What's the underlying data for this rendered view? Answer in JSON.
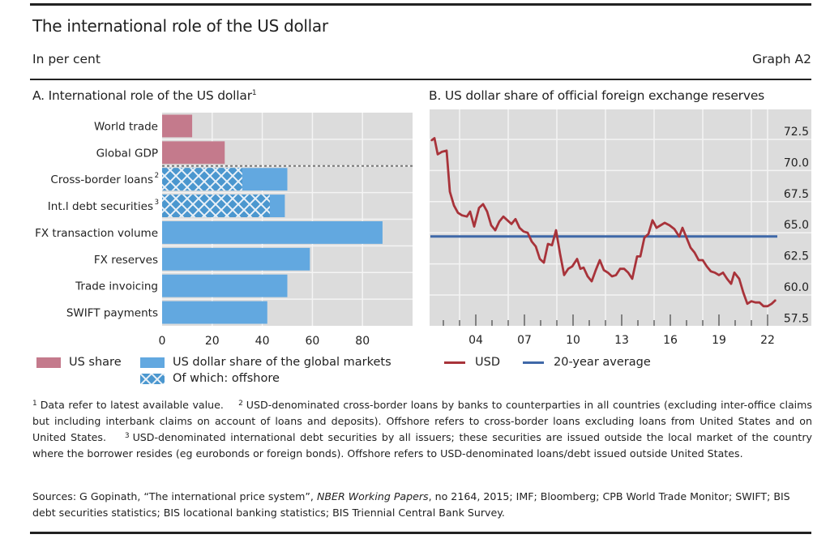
{
  "header": {
    "title": "The international role of the US dollar",
    "subtitle": "In per cent",
    "graph_id": "Graph A2"
  },
  "panel_a": {
    "title": "A. International role of the US dollar",
    "title_sup": "1",
    "legend": {
      "us_share": "US share",
      "global_markets": "US dollar share of the global markets",
      "offshore": "Of which: offshore"
    }
  },
  "panel_b": {
    "title": "B. US dollar share of official foreign exchange reserves",
    "legend": {
      "usd": "USD",
      "average": "20-year average"
    }
  },
  "colors": {
    "us_share": "#c47a8c",
    "global_markets": "#62a8e0",
    "offshore": "#4b97cf",
    "usd_line": "#a8333a",
    "average_line": "#3f68a8",
    "plot_bg": "#dcdcdc",
    "grid": "#f4f4f4"
  },
  "chart_data": [
    {
      "type": "bar",
      "orientation": "horizontal",
      "title": "A. International role of the US dollar",
      "xlabel": "",
      "ylabel": "",
      "xlim": [
        0,
        100
      ],
      "xticks": [
        0,
        20,
        40,
        60,
        80
      ],
      "grid": true,
      "categories": [
        {
          "label": "World trade",
          "sup": ""
        },
        {
          "label": "Global GDP",
          "sup": ""
        },
        {
          "label": "Cross-border loans",
          "sup": "2"
        },
        {
          "label": "Int.l debt securities",
          "sup": "3"
        },
        {
          "label": "FX transaction volume",
          "sup": ""
        },
        {
          "label": "FX reserves",
          "sup": ""
        },
        {
          "label": "Trade invoicing",
          "sup": ""
        },
        {
          "label": "SWIFT payments",
          "sup": ""
        }
      ],
      "series": [
        {
          "name": "US share",
          "values": [
            12,
            25,
            null,
            null,
            null,
            null,
            null,
            null
          ]
        },
        {
          "name": "US dollar share of the global markets",
          "values": [
            null,
            null,
            50,
            49,
            88,
            59,
            50,
            42
          ]
        },
        {
          "name": "Of which: offshore",
          "values": [
            null,
            null,
            32,
            43,
            null,
            null,
            null,
            null
          ]
        }
      ],
      "separator_after_index": 1,
      "legend_position": "bottom"
    },
    {
      "type": "line",
      "title": "B. US dollar share of official foreign exchange reserves",
      "xlabel": "",
      "ylabel": "",
      "xlim": [
        2001.2,
        2023.2
      ],
      "ylim": [
        57.5,
        73.7
      ],
      "yticks": [
        57.5,
        60.0,
        62.5,
        65.0,
        67.5,
        70.0,
        72.5
      ],
      "ytick_labels": [
        "57.5",
        "60.0",
        "62.5",
        "65.0",
        "67.5",
        "70.0",
        "72.5"
      ],
      "xticks": [
        2004,
        2007,
        2010,
        2013,
        2016,
        2019,
        2022
      ],
      "xtick_labels": [
        "04",
        "07",
        "10",
        "13",
        "16",
        "19",
        "22"
      ],
      "y_axis_side": "right",
      "grid": true,
      "legend_position": "bottom",
      "series": [
        {
          "name": "USD",
          "x": [
            2001.25,
            2001.45,
            2001.65,
            2001.9,
            2002.2,
            2002.4,
            2002.65,
            2002.9,
            2003.15,
            2003.45,
            2003.65,
            2003.9,
            2004.2,
            2004.45,
            2004.7,
            2004.95,
            2005.2,
            2005.45,
            2005.7,
            2005.95,
            2006.2,
            2006.45,
            2006.7,
            2006.95,
            2007.2,
            2007.45,
            2007.7,
            2007.95,
            2008.2,
            2008.45,
            2008.7,
            2008.95,
            2009.2,
            2009.45,
            2009.7,
            2009.95,
            2010.25,
            2010.45,
            2010.65,
            2010.9,
            2011.15,
            2011.4,
            2011.65,
            2011.9,
            2012.15,
            2012.4,
            2012.65,
            2012.9,
            2013.15,
            2013.4,
            2013.65,
            2013.95,
            2014.15,
            2014.4,
            2014.65,
            2014.9,
            2015.15,
            2015.4,
            2015.65,
            2015.95,
            2016.25,
            2016.55,
            2016.75,
            2017.0,
            2017.25,
            2017.5,
            2017.75,
            2018.0,
            2018.25,
            2018.5,
            2018.75,
            2019.0,
            2019.25,
            2019.5,
            2019.75,
            2019.95,
            2020.25,
            2020.5,
            2020.75,
            2021.0,
            2021.25,
            2021.5,
            2021.75,
            2022.0,
            2022.25,
            2022.5
          ],
          "values": [
            72.4,
            72.6,
            71.3,
            71.5,
            71.6,
            68.3,
            67.2,
            66.6,
            66.4,
            66.3,
            66.7,
            65.5,
            67.0,
            67.3,
            66.7,
            65.6,
            65.2,
            65.9,
            66.3,
            66.0,
            65.7,
            66.1,
            65.4,
            65.1,
            65.0,
            64.3,
            63.9,
            62.9,
            62.6,
            64.1,
            64.0,
            65.2,
            63.3,
            61.6,
            62.1,
            62.3,
            62.9,
            62.1,
            62.2,
            61.5,
            61.1,
            62.0,
            62.8,
            62.0,
            61.8,
            61.5,
            61.6,
            62.1,
            62.1,
            61.8,
            61.3,
            63.1,
            63.1,
            64.6,
            64.9,
            66.0,
            65.4,
            65.6,
            65.8,
            65.6,
            65.3,
            64.7,
            65.4,
            64.6,
            63.8,
            63.4,
            62.8,
            62.8,
            62.3,
            61.9,
            61.8,
            61.6,
            61.8,
            61.3,
            60.9,
            61.8,
            61.3,
            60.2,
            59.3,
            59.5,
            59.4,
            59.4,
            59.1,
            59.1,
            59.3,
            59.6
          ]
        },
        {
          "name": "20-year average",
          "x": [
            2001.2,
            2022.6
          ],
          "values": [
            64.7,
            64.7
          ]
        }
      ]
    }
  ],
  "footnotes": {
    "n1": "1",
    "t1": "Data refer to latest available value.",
    "n2": "2",
    "t2": "USD-denominated cross-border loans by banks to counterparties in all countries (excluding inter-office claims but including interbank claims on account of loans and deposits). Offshore refers to cross-border loans excluding loans from United States and on United States.",
    "n3": "3",
    "t3": "USD-denominated international debt securities by all issuers; these securities are issued outside the local market of the country where the borrower resides (eg eurobonds or foreign bonds). Offshore refers to USD-denominated loans/debt issued outside United States."
  },
  "sources": {
    "prefix": "Sources: G Gopinath, “The international price system”, ",
    "italic": "NBER Working Papers",
    "suffix": ", no 2164, 2015; IMF; Bloomberg; CPB World Trade Monitor; SWIFT; BIS debt securities statistics; BIS locational banking statistics; BIS Triennial Central Bank Survey."
  }
}
